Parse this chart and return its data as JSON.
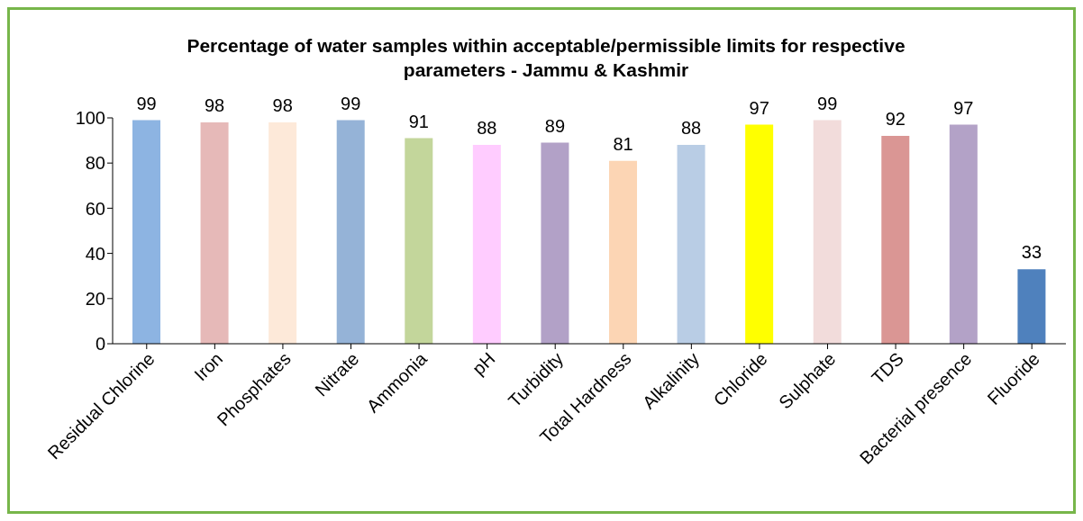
{
  "chart_data": {
    "type": "bar",
    "title": "Percentage of water samples within acceptable/permissible limits for respective parameters - Jammu & Kashmir",
    "categories": [
      "Residual Chlorine",
      "Iron",
      "Phosphates",
      "Nitrate",
      "Ammonia",
      "pH",
      "Turbidity",
      "Total Hardness",
      "Alkalinity",
      "Chloride",
      "Sulphate",
      "TDS",
      "Bacterial presence",
      "Fluoride"
    ],
    "values": [
      99,
      98,
      98,
      99,
      91,
      88,
      89,
      81,
      88,
      97,
      99,
      92,
      97,
      33
    ],
    "colors": [
      "#8db4e2",
      "#e6b9b8",
      "#fde9d9",
      "#95b3d7",
      "#c3d69b",
      "#ffccff",
      "#b2a1c7",
      "#fcd5b4",
      "#b9cde5",
      "#ffff00",
      "#f2dcdb",
      "#da9694",
      "#b3a2c7",
      "#4f81bd"
    ],
    "ylim": [
      0,
      100
    ],
    "yticks": [
      0,
      20,
      40,
      60,
      80,
      100
    ],
    "data_labels": true
  }
}
